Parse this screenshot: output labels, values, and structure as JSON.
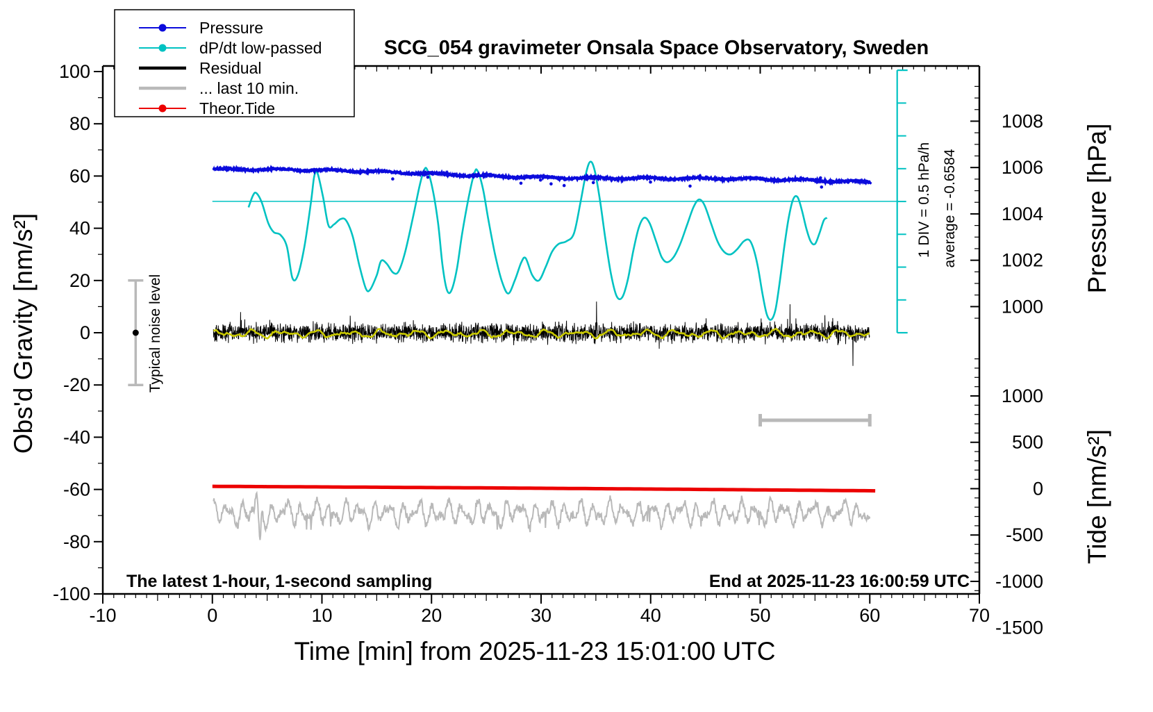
{
  "chart_data": {
    "type": "line",
    "title": "SCG_054 gravimeter Onsala Space Observatory, Sweden",
    "xlabel": "Time [min] from 2025-11-23 15:01:00 UTC",
    "ylabel_left": "Obs'd Gravity [nm/s²]",
    "ylabel_right_top": "Pressure [hPa]",
    "ylabel_right_bottom": "Tide [nm/s²]",
    "xlim": [
      -10,
      70
    ],
    "ylim_left": [
      -100,
      100
    ],
    "grid": false,
    "legend_position": "top-left",
    "x_major_ticks": [
      -10,
      0,
      10,
      20,
      30,
      40,
      50,
      60,
      70
    ],
    "gravity_ticks": [
      100,
      80,
      60,
      40,
      20,
      0,
      -20,
      -40,
      -60,
      -80,
      -100
    ],
    "pressure_ticks": [
      1008,
      1006,
      1004,
      1002,
      1000
    ],
    "tide_ticks": [
      1000,
      500,
      0,
      -500,
      -1000,
      -1500
    ],
    "annotations": {
      "sampling_note": "The latest 1-hour, 1-second sampling",
      "end_note": "End at 2025-11-23 16:00:59 UTC",
      "div_note": "1 DIV = 0.5 hPa/h",
      "average_note": "average = -0.6584",
      "noise_label": "Typical noise level"
    },
    "legend": [
      {
        "label": "Pressure",
        "color": "#0b0bdc",
        "marker": true
      },
      {
        "label": "dP/dt low-passed",
        "color": "#00c2c2",
        "marker": true
      },
      {
        "label": "Residual",
        "color": "#000000",
        "marker": false
      },
      {
        "label": "... last 10 min.",
        "color": "#b9b9b9",
        "marker": false
      },
      {
        "label": "Theor.Tide",
        "color": "#ec0000",
        "marker": true
      }
    ],
    "colors": {
      "pressure": "#0b0bdc",
      "dpdt": "#00c2c2",
      "residual": "#000000",
      "residual_smoothed": "#c9c900",
      "last10": "#b9b9b9",
      "tide": "#ec0000",
      "noise_bar": "#b9b9b9"
    },
    "series": {
      "pressure": {
        "axis": "pressure_hPa",
        "start_hPa": 1005.92,
        "end_hPa": 1005.35,
        "noise_hPa": 0.09,
        "x_range_min": [
          0.1,
          60.1
        ]
      },
      "dpdt_low_passed": {
        "axis": "gravity_plot_units",
        "scale": "1 DIV = 0.5 hPa/h, ref line = 0 hPa/h at plot value 50.3, 1 hPa/h = 28.7 plot units",
        "average_hPa_per_h": -0.6584,
        "points_min_value": [
          [
            3.3,
            48
          ],
          [
            3.7,
            52.5
          ],
          [
            4.0,
            53.5
          ],
          [
            4.5,
            50
          ],
          [
            5.1,
            42
          ],
          [
            5.6,
            38.5
          ],
          [
            6.2,
            37.5
          ],
          [
            6.8,
            33
          ],
          [
            7.3,
            21
          ],
          [
            7.8,
            22
          ],
          [
            8.4,
            33
          ],
          [
            9.0,
            50
          ],
          [
            9.3,
            60
          ],
          [
            9.6,
            61
          ],
          [
            10.1,
            52
          ],
          [
            10.6,
            41
          ],
          [
            11.1,
            41.5
          ],
          [
            11.7,
            43.5
          ],
          [
            12.2,
            43
          ],
          [
            12.8,
            37
          ],
          [
            13.4,
            26
          ],
          [
            14.0,
            17
          ],
          [
            14.4,
            16.5
          ],
          [
            15.0,
            22
          ],
          [
            15.4,
            27.5
          ],
          [
            15.9,
            26.5
          ],
          [
            16.5,
            23
          ],
          [
            17.0,
            23.5
          ],
          [
            17.6,
            31
          ],
          [
            18.3,
            44
          ],
          [
            18.9,
            56
          ],
          [
            19.3,
            62
          ],
          [
            19.6,
            62.5
          ],
          [
            20.1,
            55
          ],
          [
            20.6,
            42
          ],
          [
            21.0,
            26
          ],
          [
            21.4,
            16.5
          ],
          [
            21.8,
            16
          ],
          [
            22.3,
            24
          ],
          [
            22.8,
            38
          ],
          [
            23.4,
            52
          ],
          [
            23.9,
            61
          ],
          [
            24.2,
            62
          ],
          [
            24.7,
            55
          ],
          [
            25.2,
            43
          ],
          [
            25.8,
            30
          ],
          [
            26.4,
            20
          ],
          [
            27.0,
            15
          ],
          [
            27.6,
            20
          ],
          [
            28.2,
            27
          ],
          [
            28.6,
            28.5
          ],
          [
            29.2,
            22
          ],
          [
            29.8,
            20
          ],
          [
            30.4,
            25
          ],
          [
            31.0,
            31
          ],
          [
            31.6,
            34
          ],
          [
            32.3,
            35
          ],
          [
            33.0,
            38
          ],
          [
            33.6,
            50
          ],
          [
            34.1,
            61
          ],
          [
            34.5,
            65.5
          ],
          [
            34.9,
            62
          ],
          [
            35.4,
            50
          ],
          [
            35.9,
            35
          ],
          [
            36.4,
            22
          ],
          [
            36.9,
            14
          ],
          [
            37.4,
            13.5
          ],
          [
            37.9,
            20
          ],
          [
            38.4,
            31
          ],
          [
            38.9,
            40
          ],
          [
            39.4,
            44
          ],
          [
            39.9,
            42
          ],
          [
            40.5,
            35
          ],
          [
            41.0,
            29
          ],
          [
            41.5,
            27
          ],
          [
            42.1,
            29
          ],
          [
            42.7,
            34
          ],
          [
            43.3,
            41
          ],
          [
            43.9,
            48
          ],
          [
            44.4,
            51
          ],
          [
            44.9,
            49
          ],
          [
            45.5,
            42
          ],
          [
            46.1,
            35
          ],
          [
            46.7,
            31
          ],
          [
            47.3,
            30
          ],
          [
            47.9,
            32
          ],
          [
            48.5,
            35
          ],
          [
            49.0,
            35.5
          ],
          [
            49.4,
            32
          ],
          [
            49.8,
            25
          ],
          [
            50.2,
            15
          ],
          [
            50.6,
            7
          ],
          [
            51.0,
            5
          ],
          [
            51.4,
            9
          ],
          [
            51.8,
            20
          ],
          [
            52.2,
            33
          ],
          [
            52.6,
            44
          ],
          [
            53.0,
            51
          ],
          [
            53.4,
            52
          ],
          [
            53.8,
            47
          ],
          [
            54.2,
            40
          ],
          [
            54.6,
            35
          ],
          [
            55.0,
            34
          ],
          [
            55.4,
            38
          ],
          [
            55.8,
            43
          ],
          [
            56.1,
            44
          ]
        ]
      },
      "residual": {
        "axis": "gravity",
        "center": 0,
        "typical_amp": 5,
        "spike_amp": 11,
        "x_range_min": [
          0.1,
          60.0
        ]
      },
      "residual_smoothed": {
        "axis": "gravity",
        "center": -0.4,
        "amp": 1.6,
        "x_range_min": [
          0.1,
          60.0
        ]
      },
      "residual_last_10_min": {
        "axis": "gravity_display_offset",
        "center": -69,
        "typical_amp": 5,
        "down_spike_min": 4.35,
        "x_range_min": [
          0.1,
          60.0
        ]
      },
      "theor_tide": {
        "axis": "tide",
        "start_value": 25,
        "end_value": -23,
        "x_range_min": [
          0.0,
          60.5
        ]
      }
    },
    "noise_bar": {
      "x_min": -7,
      "center_value": 0,
      "half_height": 20
    },
    "last10_span_bar": {
      "x0_min": 50,
      "x1_min": 60,
      "value": -33.5
    },
    "div_scale_bar": {
      "x_min": 62.5,
      "top_value": 100.5,
      "bottom_value": 0,
      "n_interior_ticks": 7
    },
    "ref_line": {
      "value": 50.3,
      "x0_min": 0,
      "x1_min": 62.5
    }
  }
}
